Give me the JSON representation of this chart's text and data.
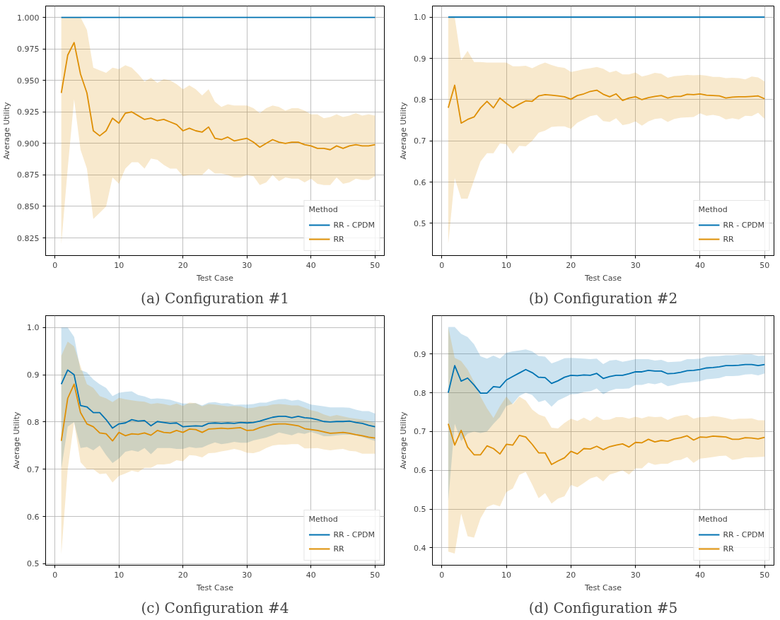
{
  "chart_data": [
    {
      "type": "line",
      "title": "(a) Configuration #1",
      "xlabel": "Test Case",
      "ylabel": "Average Utility",
      "legend_title": "Method",
      "legend": "bottom right",
      "grid": true,
      "xlim": [
        -1.45,
        51.45
      ],
      "ylim": [
        0.811,
        1.009
      ],
      "xticks": [
        0,
        10,
        20,
        30,
        40,
        50
      ],
      "yticks": [
        {
          "value": 0.825,
          "label": "0.825"
        },
        {
          "value": 0.85,
          "label": "0.850"
        },
        {
          "value": 0.875,
          "label": "0.875"
        },
        {
          "value": 0.9,
          "label": "0.900"
        },
        {
          "value": 0.925,
          "label": "0.925"
        },
        {
          "value": 0.95,
          "label": "0.950"
        },
        {
          "value": 0.975,
          "label": "0.975"
        },
        {
          "value": 1.0,
          "label": "1.000"
        }
      ],
      "x": [
        1,
        2,
        3,
        4,
        5,
        6,
        7,
        8,
        9,
        10,
        11,
        12,
        13,
        14,
        15,
        16,
        17,
        18,
        19,
        20,
        21,
        22,
        23,
        24,
        25,
        26,
        27,
        28,
        29,
        30,
        31,
        32,
        33,
        34,
        35,
        36,
        37,
        38,
        39,
        40,
        41,
        42,
        43,
        44,
        45,
        46,
        47,
        48,
        49,
        50
      ],
      "series": [
        {
          "name": "RR - CPDM",
          "color": "#0173b2",
          "values": [
            1.0,
            1.0,
            1.0,
            1.0,
            1.0,
            1.0,
            1.0,
            1.0,
            1.0,
            1.0,
            1.0,
            1.0,
            1.0,
            1.0,
            1.0,
            1.0,
            1.0,
            1.0,
            1.0,
            1.0,
            1.0,
            1.0,
            1.0,
            1.0,
            1.0,
            1.0,
            1.0,
            1.0,
            1.0,
            1.0,
            1.0,
            1.0,
            1.0,
            1.0,
            1.0,
            1.0,
            1.0,
            1.0,
            1.0,
            1.0,
            1.0,
            1.0,
            1.0,
            1.0,
            1.0,
            1.0,
            1.0,
            1.0,
            1.0,
            1.0
          ]
        },
        {
          "name": "RR",
          "color": "#de8f05",
          "values": [
            0.94,
            0.97,
            0.98,
            0.955,
            0.94,
            0.91,
            0.906,
            0.91,
            0.92,
            0.916,
            0.924,
            0.925,
            0.922,
            0.919,
            0.92,
            0.918,
            0.919,
            0.917,
            0.915,
            0.91,
            0.912,
            0.91,
            0.909,
            0.913,
            0.904,
            0.903,
            0.905,
            0.902,
            0.903,
            0.904,
            0.901,
            0.897,
            0.9,
            0.903,
            0.901,
            0.9,
            0.901,
            0.901,
            0.899,
            0.898,
            0.896,
            0.896,
            0.895,
            0.898,
            0.896,
            0.898,
            0.899,
            0.898,
            0.898,
            0.899
          ],
          "upper": [
            1.0,
            1.0,
            1.0,
            1.0,
            0.99,
            0.96,
            0.958,
            0.956,
            0.96,
            0.959,
            0.962,
            0.96,
            0.955,
            0.949,
            0.952,
            0.948,
            0.951,
            0.95,
            0.947,
            0.943,
            0.946,
            0.943,
            0.938,
            0.943,
            0.933,
            0.929,
            0.931,
            0.93,
            0.93,
            0.93,
            0.928,
            0.924,
            0.928,
            0.93,
            0.929,
            0.926,
            0.928,
            0.928,
            0.926,
            0.923,
            0.923,
            0.92,
            0.921,
            0.923,
            0.921,
            0.922,
            0.924,
            0.922,
            0.923,
            0.922
          ],
          "lower": [
            0.82,
            0.88,
            0.935,
            0.895,
            0.88,
            0.84,
            0.845,
            0.85,
            0.873,
            0.868,
            0.88,
            0.885,
            0.885,
            0.88,
            0.888,
            0.887,
            0.883,
            0.88,
            0.88,
            0.874,
            0.875,
            0.875,
            0.875,
            0.88,
            0.876,
            0.876,
            0.875,
            0.873,
            0.873,
            0.875,
            0.874,
            0.867,
            0.869,
            0.875,
            0.87,
            0.873,
            0.872,
            0.872,
            0.869,
            0.872,
            0.868,
            0.867,
            0.867,
            0.873,
            0.868,
            0.869,
            0.872,
            0.871,
            0.871,
            0.874
          ]
        }
      ]
    },
    {
      "type": "line",
      "title": "(b) Configuration #2",
      "xlabel": "Test Case",
      "ylabel": "Average Utility",
      "legend_title": "Method",
      "legend": "bottom right",
      "grid": true,
      "xlim": [
        -1.45,
        51.45
      ],
      "ylim": [
        0.422,
        1.027
      ],
      "xticks": [
        0,
        10,
        20,
        30,
        40,
        50
      ],
      "yticks": [
        0.5,
        0.6,
        0.7,
        0.8,
        0.9,
        {
          "value": 1.0,
          "label": "1.0"
        }
      ],
      "x": [
        1,
        2,
        3,
        4,
        5,
        6,
        7,
        8,
        9,
        10,
        11,
        12,
        13,
        14,
        15,
        16,
        17,
        18,
        19,
        20,
        21,
        22,
        23,
        24,
        25,
        26,
        27,
        28,
        29,
        30,
        31,
        32,
        33,
        34,
        35,
        36,
        37,
        38,
        39,
        40,
        41,
        42,
        43,
        44,
        45,
        46,
        47,
        48,
        49,
        50
      ],
      "series": [
        {
          "name": "RR - CPDM",
          "color": "#0173b2",
          "values": [
            1.0,
            1.0,
            1.0,
            1.0,
            1.0,
            1.0,
            1.0,
            1.0,
            1.0,
            1.0,
            1.0,
            1.0,
            1.0,
            1.0,
            1.0,
            1.0,
            1.0,
            1.0,
            1.0,
            1.0,
            1.0,
            1.0,
            1.0,
            1.0,
            1.0,
            1.0,
            1.0,
            1.0,
            1.0,
            1.0,
            1.0,
            1.0,
            1.0,
            1.0,
            1.0,
            1.0,
            1.0,
            1.0,
            1.0,
            1.0,
            1.0,
            1.0,
            1.0,
            1.0,
            1.0,
            1.0,
            1.0,
            1.0,
            1.0,
            1.0
          ]
        },
        {
          "name": "RR",
          "color": "#de8f05",
          "values": [
            0.78,
            0.835,
            0.743,
            0.752,
            0.758,
            0.78,
            0.796,
            0.78,
            0.804,
            0.791,
            0.78,
            0.789,
            0.797,
            0.796,
            0.809,
            0.812,
            0.811,
            0.809,
            0.807,
            0.801,
            0.81,
            0.814,
            0.82,
            0.823,
            0.813,
            0.807,
            0.814,
            0.798,
            0.804,
            0.807,
            0.8,
            0.805,
            0.808,
            0.81,
            0.804,
            0.808,
            0.808,
            0.813,
            0.812,
            0.814,
            0.811,
            0.81,
            0.809,
            0.804,
            0.806,
            0.807,
            0.807,
            0.808,
            0.809,
            0.802
          ],
          "upper": [
            1.0,
            1.0,
            0.895,
            0.918,
            0.891,
            0.891,
            0.89,
            0.89,
            0.89,
            0.89,
            0.881,
            0.881,
            0.882,
            0.876,
            0.884,
            0.89,
            0.884,
            0.879,
            0.877,
            0.867,
            0.87,
            0.874,
            0.876,
            0.879,
            0.875,
            0.866,
            0.87,
            0.861,
            0.861,
            0.866,
            0.856,
            0.86,
            0.865,
            0.863,
            0.853,
            0.857,
            0.858,
            0.86,
            0.859,
            0.86,
            0.858,
            0.855,
            0.855,
            0.852,
            0.853,
            0.852,
            0.849,
            0.856,
            0.854,
            0.844
          ],
          "lower": [
            0.45,
            0.61,
            0.56,
            0.56,
            0.605,
            0.65,
            0.67,
            0.67,
            0.694,
            0.692,
            0.669,
            0.688,
            0.687,
            0.7,
            0.72,
            0.725,
            0.734,
            0.735,
            0.735,
            0.729,
            0.744,
            0.752,
            0.76,
            0.763,
            0.748,
            0.746,
            0.755,
            0.738,
            0.741,
            0.747,
            0.737,
            0.747,
            0.753,
            0.755,
            0.746,
            0.753,
            0.756,
            0.757,
            0.758,
            0.767,
            0.761,
            0.763,
            0.76,
            0.752,
            0.755,
            0.752,
            0.761,
            0.76,
            0.768,
            0.753
          ]
        }
      ]
    },
    {
      "type": "line",
      "title": "(c) Configuration #4",
      "xlabel": "Test Case",
      "ylabel": "Average Utility",
      "legend_title": "Method",
      "legend": "bottom right",
      "grid": true,
      "xlim": [
        -1.45,
        51.45
      ],
      "ylim": [
        0.497,
        1.025
      ],
      "xticks": [
        0,
        10,
        20,
        30,
        40,
        50
      ],
      "yticks": [
        0.5,
        0.6,
        0.7,
        0.8,
        0.9,
        {
          "value": 1.0,
          "label": "1.0"
        }
      ],
      "x": [
        1,
        2,
        3,
        4,
        5,
        6,
        7,
        8,
        9,
        10,
        11,
        12,
        13,
        14,
        15,
        16,
        17,
        18,
        19,
        20,
        21,
        22,
        23,
        24,
        25,
        26,
        27,
        28,
        29,
        30,
        31,
        32,
        33,
        34,
        35,
        36,
        37,
        38,
        39,
        40,
        41,
        42,
        43,
        44,
        45,
        46,
        47,
        48,
        49,
        50
      ],
      "series": [
        {
          "name": "RR - CPDM",
          "color": "#0173b2",
          "values": [
            0.88,
            0.91,
            0.9,
            0.835,
            0.832,
            0.82,
            0.82,
            0.805,
            0.787,
            0.796,
            0.798,
            0.805,
            0.802,
            0.803,
            0.792,
            0.801,
            0.799,
            0.797,
            0.798,
            0.79,
            0.791,
            0.792,
            0.791,
            0.797,
            0.798,
            0.797,
            0.798,
            0.797,
            0.799,
            0.798,
            0.799,
            0.802,
            0.806,
            0.81,
            0.812,
            0.812,
            0.809,
            0.812,
            0.809,
            0.808,
            0.805,
            0.801,
            0.8,
            0.801,
            0.801,
            0.802,
            0.799,
            0.797,
            0.793,
            0.79
          ],
          "upper": [
            1.0,
            1.0,
            0.98,
            0.91,
            0.905,
            0.89,
            0.88,
            0.872,
            0.855,
            0.862,
            0.864,
            0.865,
            0.857,
            0.854,
            0.849,
            0.85,
            0.849,
            0.847,
            0.843,
            0.839,
            0.839,
            0.84,
            0.835,
            0.841,
            0.842,
            0.839,
            0.84,
            0.836,
            0.837,
            0.837,
            0.838,
            0.841,
            0.841,
            0.845,
            0.848,
            0.849,
            0.845,
            0.847,
            0.842,
            0.837,
            0.835,
            0.833,
            0.831,
            0.831,
            0.831,
            0.83,
            0.826,
            0.823,
            0.823,
            0.818
          ],
          "lower": [
            0.7,
            0.79,
            0.8,
            0.745,
            0.747,
            0.74,
            0.75,
            0.73,
            0.713,
            0.723,
            0.737,
            0.74,
            0.737,
            0.745,
            0.732,
            0.745,
            0.745,
            0.745,
            0.743,
            0.743,
            0.747,
            0.745,
            0.746,
            0.752,
            0.757,
            0.753,
            0.755,
            0.758,
            0.756,
            0.756,
            0.761,
            0.764,
            0.767,
            0.772,
            0.778,
            0.775,
            0.772,
            0.777,
            0.775,
            0.779,
            0.775,
            0.77,
            0.77,
            0.772,
            0.773,
            0.773,
            0.772,
            0.768,
            0.764,
            0.76
          ]
        },
        {
          "name": "RR",
          "color": "#de8f05",
          "values": [
            0.76,
            0.85,
            0.88,
            0.82,
            0.796,
            0.79,
            0.777,
            0.775,
            0.76,
            0.778,
            0.771,
            0.775,
            0.774,
            0.777,
            0.772,
            0.782,
            0.778,
            0.777,
            0.782,
            0.778,
            0.785,
            0.784,
            0.778,
            0.785,
            0.786,
            0.787,
            0.786,
            0.787,
            0.788,
            0.782,
            0.783,
            0.788,
            0.792,
            0.795,
            0.796,
            0.796,
            0.794,
            0.792,
            0.786,
            0.784,
            0.782,
            0.779,
            0.776,
            0.777,
            0.778,
            0.776,
            0.773,
            0.771,
            0.768,
            0.766
          ],
          "upper": [
            0.94,
            0.97,
            0.96,
            0.918,
            0.88,
            0.872,
            0.855,
            0.85,
            0.842,
            0.851,
            0.848,
            0.846,
            0.844,
            0.843,
            0.838,
            0.84,
            0.838,
            0.835,
            0.839,
            0.834,
            0.841,
            0.84,
            0.833,
            0.838,
            0.837,
            0.835,
            0.833,
            0.834,
            0.833,
            0.829,
            0.83,
            0.833,
            0.834,
            0.837,
            0.838,
            0.837,
            0.835,
            0.835,
            0.83,
            0.825,
            0.822,
            0.816,
            0.812,
            0.815,
            0.812,
            0.809,
            0.807,
            0.805,
            0.802,
            0.798
          ],
          "lower": [
            0.52,
            0.7,
            0.8,
            0.715,
            0.7,
            0.7,
            0.69,
            0.691,
            0.672,
            0.686,
            0.691,
            0.697,
            0.694,
            0.703,
            0.703,
            0.71,
            0.71,
            0.712,
            0.719,
            0.717,
            0.73,
            0.729,
            0.725,
            0.734,
            0.735,
            0.738,
            0.74,
            0.743,
            0.74,
            0.735,
            0.734,
            0.738,
            0.745,
            0.75,
            0.752,
            0.752,
            0.753,
            0.753,
            0.744,
            0.744,
            0.745,
            0.742,
            0.74,
            0.742,
            0.743,
            0.739,
            0.738,
            0.733,
            0.733,
            0.733
          ]
        }
      ]
    },
    {
      "type": "line",
      "title": "(d) Configuration #5",
      "xlabel": "Test Case",
      "ylabel": "Average Utility",
      "legend_title": "Method",
      "legend": "bottom right",
      "grid": true,
      "xlim": [
        -1.45,
        51.45
      ],
      "ylim": [
        0.355,
        0.999
      ],
      "xticks": [
        0,
        10,
        20,
        30,
        40,
        50
      ],
      "yticks": [
        0.4,
        0.5,
        0.6,
        0.7,
        0.8,
        0.9
      ],
      "x": [
        1,
        2,
        3,
        4,
        5,
        6,
        7,
        8,
        9,
        10,
        11,
        12,
        13,
        14,
        15,
        16,
        17,
        18,
        19,
        20,
        21,
        22,
        23,
        24,
        25,
        26,
        27,
        28,
        29,
        30,
        31,
        32,
        33,
        34,
        35,
        36,
        37,
        38,
        39,
        40,
        41,
        42,
        43,
        44,
        45,
        46,
        47,
        48,
        49,
        50
      ],
      "series": [
        {
          "name": "RR - CPDM",
          "color": "#0173b2",
          "values": [
            0.8,
            0.87,
            0.83,
            0.838,
            0.82,
            0.799,
            0.799,
            0.816,
            0.814,
            0.833,
            0.842,
            0.851,
            0.86,
            0.852,
            0.84,
            0.839,
            0.824,
            0.831,
            0.84,
            0.845,
            0.844,
            0.846,
            0.845,
            0.85,
            0.837,
            0.842,
            0.845,
            0.845,
            0.849,
            0.854,
            0.854,
            0.858,
            0.856,
            0.856,
            0.849,
            0.85,
            0.853,
            0.857,
            0.858,
            0.86,
            0.864,
            0.865,
            0.867,
            0.87,
            0.87,
            0.871,
            0.873,
            0.873,
            0.87,
            0.873
          ],
          "upper": [
            0.97,
            0.97,
            0.952,
            0.944,
            0.925,
            0.894,
            0.888,
            0.896,
            0.888,
            0.903,
            0.907,
            0.909,
            0.912,
            0.907,
            0.895,
            0.893,
            0.876,
            0.882,
            0.889,
            0.89,
            0.889,
            0.888,
            0.887,
            0.888,
            0.874,
            0.883,
            0.885,
            0.88,
            0.883,
            0.887,
            0.887,
            0.887,
            0.883,
            0.885,
            0.879,
            0.88,
            0.881,
            0.887,
            0.887,
            0.888,
            0.893,
            0.894,
            0.895,
            0.897,
            0.897,
            0.898,
            0.899,
            0.899,
            0.895,
            0.896
          ],
          "lower": [
            0.52,
            0.72,
            0.675,
            0.695,
            0.7,
            0.696,
            0.7,
            0.72,
            0.737,
            0.766,
            0.772,
            0.792,
            0.8,
            0.794,
            0.776,
            0.781,
            0.764,
            0.78,
            0.788,
            0.796,
            0.797,
            0.802,
            0.804,
            0.811,
            0.796,
            0.805,
            0.81,
            0.81,
            0.811,
            0.82,
            0.82,
            0.825,
            0.822,
            0.826,
            0.817,
            0.82,
            0.825,
            0.826,
            0.828,
            0.83,
            0.835,
            0.836,
            0.838,
            0.843,
            0.843,
            0.844,
            0.847,
            0.848,
            0.845,
            0.85
          ]
        },
        {
          "name": "RR",
          "color": "#de8f05",
          "values": [
            0.72,
            0.665,
            0.703,
            0.66,
            0.64,
            0.64,
            0.663,
            0.656,
            0.642,
            0.667,
            0.665,
            0.69,
            0.686,
            0.667,
            0.645,
            0.645,
            0.615,
            0.624,
            0.632,
            0.649,
            0.642,
            0.656,
            0.655,
            0.662,
            0.653,
            0.661,
            0.665,
            0.668,
            0.66,
            0.672,
            0.671,
            0.68,
            0.673,
            0.677,
            0.675,
            0.681,
            0.684,
            0.689,
            0.678,
            0.686,
            0.685,
            0.688,
            0.687,
            0.686,
            0.68,
            0.68,
            0.684,
            0.683,
            0.681,
            0.685
          ],
          "upper": [
            0.97,
            0.89,
            0.882,
            0.86,
            0.828,
            0.79,
            0.76,
            0.735,
            0.765,
            0.79,
            0.77,
            0.79,
            0.78,
            0.757,
            0.744,
            0.738,
            0.71,
            0.708,
            0.722,
            0.733,
            0.727,
            0.736,
            0.727,
            0.739,
            0.73,
            0.731,
            0.737,
            0.737,
            0.733,
            0.738,
            0.734,
            0.739,
            0.737,
            0.738,
            0.73,
            0.737,
            0.741,
            0.743,
            0.733,
            0.737,
            0.737,
            0.74,
            0.738,
            0.735,
            0.731,
            0.733,
            0.733,
            0.734,
            0.729,
            0.729
          ],
          "lower": [
            0.39,
            0.385,
            0.488,
            0.43,
            0.426,
            0.476,
            0.505,
            0.512,
            0.507,
            0.544,
            0.553,
            0.588,
            0.596,
            0.563,
            0.528,
            0.541,
            0.514,
            0.527,
            0.533,
            0.562,
            0.556,
            0.567,
            0.579,
            0.584,
            0.571,
            0.589,
            0.594,
            0.6,
            0.589,
            0.605,
            0.605,
            0.62,
            0.614,
            0.617,
            0.617,
            0.625,
            0.627,
            0.634,
            0.619,
            0.63,
            0.632,
            0.634,
            0.637,
            0.638,
            0.627,
            0.629,
            0.633,
            0.633,
            0.634,
            0.635
          ]
        }
      ]
    }
  ]
}
